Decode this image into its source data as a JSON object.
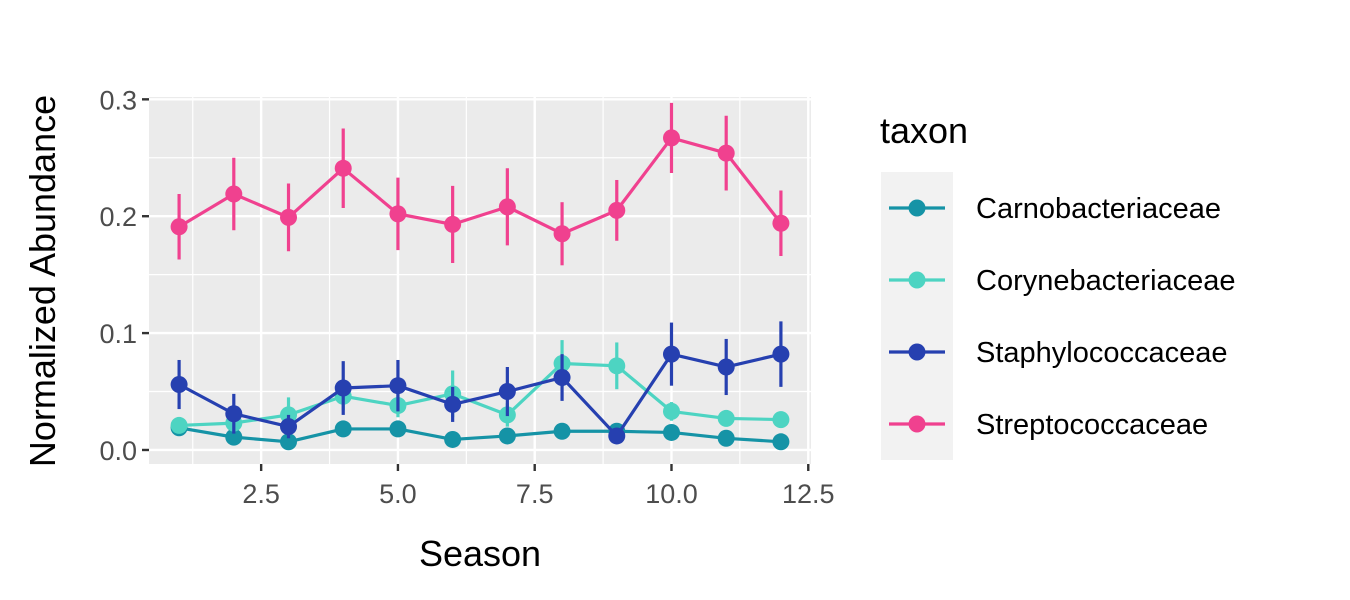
{
  "chart_data": {
    "type": "line",
    "xlabel": "Season",
    "ylabel": "Normalized Abundance",
    "xlim": [
      0.45,
      12.55
    ],
    "ylim": [
      -0.012,
      0.302
    ],
    "x_ticks": [
      2.5,
      5.0,
      7.5,
      10.0,
      12.5
    ],
    "x_tick_labels": [
      "2.5",
      "5.0",
      "7.5",
      "10.0",
      "12.5"
    ],
    "y_ticks": [
      0.0,
      0.1,
      0.2,
      0.3
    ],
    "y_tick_labels": [
      "0.0",
      "0.1",
      "0.2",
      "0.3"
    ],
    "grid": true,
    "legend_title": "taxon",
    "legend_position": "right",
    "x": [
      1,
      2,
      3,
      4,
      5,
      6,
      7,
      8,
      9,
      10,
      11,
      12
    ],
    "series": [
      {
        "name": "Carnobacteriaceae",
        "color": "#1593A6",
        "values": [
          0.019,
          0.011,
          0.007,
          0.018,
          0.018,
          0.009,
          0.012,
          0.016,
          0.016,
          0.015,
          0.01,
          0.007
        ],
        "errors": [
          0.003,
          0.003,
          0.003,
          0.005,
          0.005,
          0.003,
          0.003,
          0.004,
          0.003,
          0.003,
          0.003,
          0.003
        ]
      },
      {
        "name": "Corynebacteriaceae",
        "color": "#4DD4C2",
        "values": [
          0.021,
          0.023,
          0.03,
          0.046,
          0.038,
          0.048,
          0.03,
          0.074,
          0.072,
          0.033,
          0.027,
          0.026
        ],
        "errors": [
          0.005,
          0.005,
          0.015,
          0.012,
          0.01,
          0.02,
          0.01,
          0.02,
          0.02,
          0.008,
          0.007,
          0.007
        ]
      },
      {
        "name": "Staphylococcaceae",
        "color": "#2640B0",
        "values": [
          0.056,
          0.031,
          0.02,
          0.053,
          0.055,
          0.039,
          0.05,
          0.062,
          0.012,
          0.082,
          0.071,
          0.082
        ],
        "errors": [
          0.021,
          0.017,
          0.01,
          0.023,
          0.022,
          0.015,
          0.021,
          0.02,
          0.005,
          0.027,
          0.024,
          0.028
        ]
      },
      {
        "name": "Streptococcaceae",
        "color": "#F0418F",
        "values": [
          0.191,
          0.219,
          0.199,
          0.241,
          0.202,
          0.193,
          0.208,
          0.185,
          0.205,
          0.267,
          0.254,
          0.194
        ],
        "errors": [
          0.028,
          0.031,
          0.029,
          0.034,
          0.031,
          0.033,
          0.033,
          0.027,
          0.026,
          0.03,
          0.032,
          0.028
        ]
      }
    ]
  }
}
